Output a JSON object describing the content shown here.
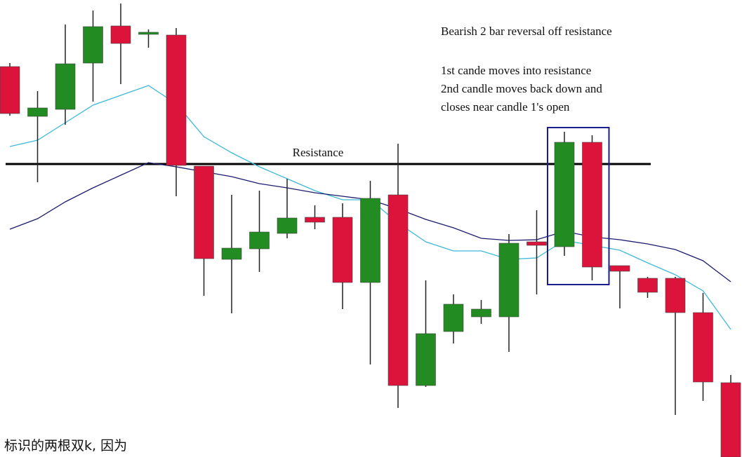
{
  "chart_data": {
    "type": "candlestick",
    "ylim": [
      0,
      652
    ],
    "up_color": "#228b22",
    "down_color": "#dc143c",
    "wick_color": "#222222",
    "open": [
      557,
      486,
      496,
      562,
      615,
      603,
      602,
      415,
      282,
      297,
      319,
      342,
      342,
      249,
      374,
      102,
      179,
      200,
      200,
      307,
      300,
      449,
      273,
      255,
      255,
      206,
      106
    ],
    "high": [
      562,
      522,
      617,
      637,
      647,
      610,
      612,
      415,
      374,
      380,
      397,
      359,
      362,
      394,
      447,
      252,
      232,
      224,
      318,
      352,
      464,
      459,
      273,
      257,
      257,
      234,
      117
    ],
    "low": [
      487,
      392,
      474,
      507,
      532,
      584,
      372,
      230,
      205,
      264,
      312,
      325,
      211,
      132,
      70,
      100,
      162,
      190,
      150,
      232,
      287,
      252,
      212,
      227,
      60,
      80,
      0
    ],
    "close": [
      490,
      498,
      561,
      614,
      590,
      606,
      416,
      283,
      298,
      321,
      341,
      335,
      249,
      369,
      102,
      176,
      218,
      211,
      305,
      302,
      449,
      271,
      265,
      235,
      206,
      107,
      0
    ],
    "lines": [
      {
        "color": "#3fb8d8",
        "values": [
          443,
          452,
          477,
          502,
          516,
          530,
          504,
          457,
          434,
          414,
          397,
          380,
          367,
          367,
          334,
          307,
          294,
          294,
          282,
          284,
          309,
          302,
          295,
          277,
          260,
          237,
          182
        ]
      },
      {
        "color": "#1c1c6e",
        "values": [
          325,
          340,
          364,
          384,
          402,
          420,
          414,
          407,
          400,
          390,
          384,
          377,
          372,
          367,
          354,
          339,
          327,
          312,
          309,
          310,
          322,
          314,
          310,
          304,
          296,
          280,
          250
        ]
      }
    ],
    "resistance": {
      "value": 418,
      "label": "Resistance",
      "color": "#000000"
    },
    "highlight": {
      "candles": [
        20,
        21
      ],
      "color": "#1c1c8e"
    },
    "annotation": {
      "title": "Bearish 2 bar reversal off resistance",
      "lines": [
        "1st cande moves into resistance",
        "2nd candle moves back down and",
        "closes near candle 1's open"
      ]
    },
    "caption": "标识的两根双k, 因为"
  }
}
